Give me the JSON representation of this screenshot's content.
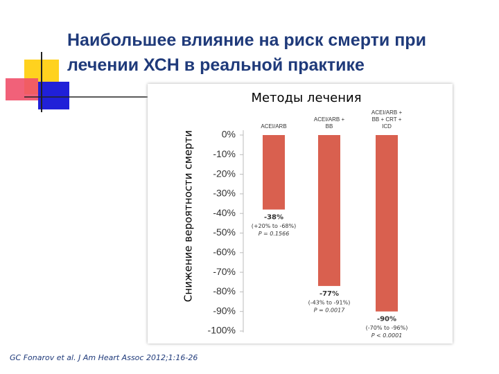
{
  "slide": {
    "title": "Наибольшее влияние на риск смерти при лечении ХСН в реальной практике",
    "citation": "GC Fonarov et al. J Am Heart Assoc 2012;1:16-26"
  },
  "chart_data": {
    "type": "bar",
    "title": "Методы лечения",
    "y_label": "Снижение вероятности смерти",
    "categories": [
      "ACEI/ARB",
      "ACEI/ARB +\nBB",
      "ACEI/ARB +\nBB + CRT +\nICD"
    ],
    "values": [
      -38,
      -77,
      -90
    ],
    "value_labels": [
      "-38%",
      "-77%",
      "-90%"
    ],
    "intervals": [
      "(+20% to -68%)",
      "(-43% to -91%)",
      "(-70% to -96%)"
    ],
    "p_values": [
      "P = 0.1566",
      "P = 0.0017",
      "P < 0.0001"
    ],
    "color": "#d9604f",
    "ylim": [
      -100,
      0
    ],
    "yticks": [
      {
        "value": 0,
        "label": "0%"
      },
      {
        "value": -10,
        "label": "-10%"
      },
      {
        "value": -20,
        "label": "-20%"
      },
      {
        "value": -30,
        "label": "-30%"
      },
      {
        "value": -40,
        "label": "-40%"
      },
      {
        "value": -50,
        "label": "-50%"
      },
      {
        "value": -60,
        "label": "-60%"
      },
      {
        "value": -70,
        "label": "-70%"
      },
      {
        "value": -80,
        "label": "-80%"
      },
      {
        "value": -90,
        "label": "-90%"
      },
      {
        "value": -100,
        "label": "-100%"
      }
    ]
  }
}
